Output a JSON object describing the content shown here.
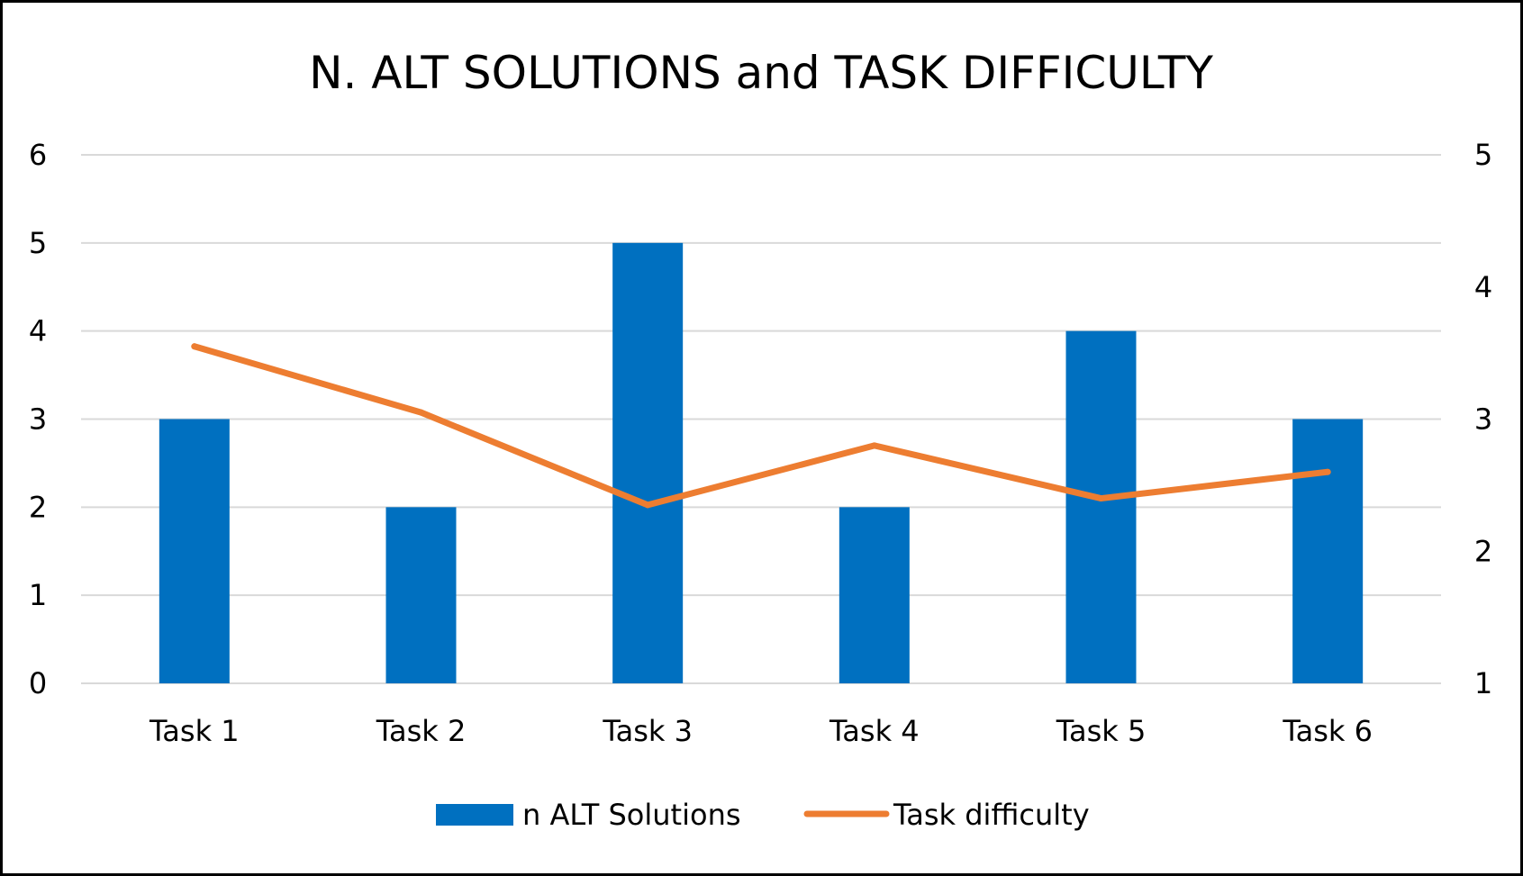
{
  "chart_data": {
    "type": "bar+line",
    "title": "N. ALT SOLUTIONS and TASK DIFFICULTY",
    "categories": [
      "Task 1",
      "Task 2",
      "Task 3",
      "Task 4",
      "Task 5",
      "Task 6"
    ],
    "series": [
      {
        "name": "n ALT Solutions",
        "type": "bar",
        "axis": "left",
        "color": "#0070c0",
        "values": [
          3,
          2,
          5,
          2,
          4,
          3
        ]
      },
      {
        "name": "Task difficulty",
        "type": "line",
        "axis": "right",
        "color": "#ed7d31",
        "values": [
          3.55,
          3.05,
          2.35,
          2.8,
          2.4,
          2.6
        ]
      }
    ],
    "y_left": {
      "min": 0,
      "max": 6,
      "ticks": [
        "0",
        "1",
        "2",
        "3",
        "4",
        "5",
        "6"
      ]
    },
    "y_right": {
      "min": 1,
      "max": 5,
      "ticks": [
        "1",
        "2",
        "3",
        "4",
        "5"
      ]
    },
    "grid": true,
    "legend_position": "bottom"
  }
}
